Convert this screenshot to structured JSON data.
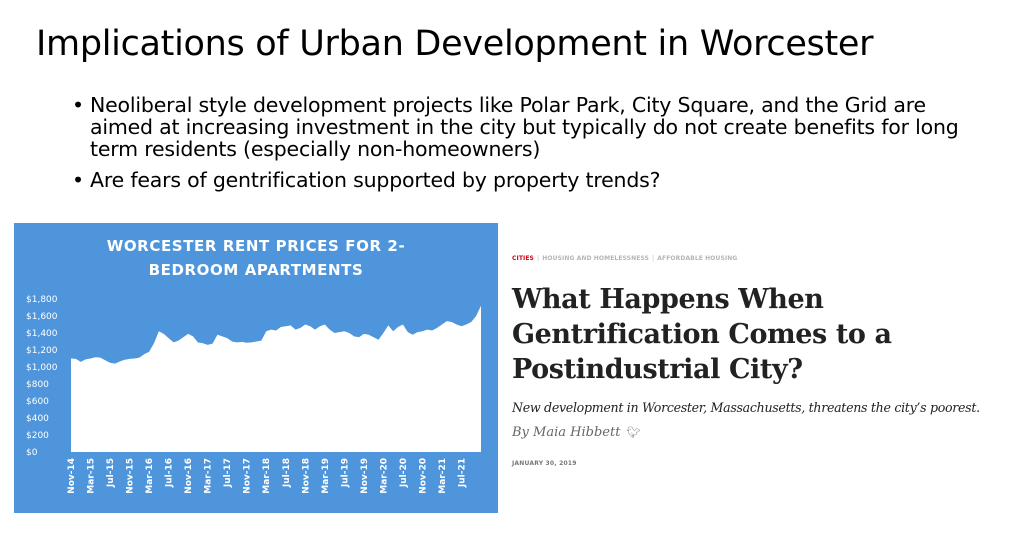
{
  "slide": {
    "title": "Implications of Urban Development in Worcester",
    "bullets": [
      "Neoliberal style development projects like Polar Park, City Square, and the Grid are aimed at increasing investment in the city but typically do not create benefits for long term residents (especially non-homeowners)",
      "Are fears of gentrification supported by property trends?"
    ]
  },
  "chart_data": {
    "type": "area",
    "title_lines": [
      "WORCESTER RENT PRICES FOR 2-",
      "BEDROOM APARTMENTS"
    ],
    "background_color": "#4f95dc",
    "fill_color": "#ffffff",
    "x_tick_labels": [
      "Nov-14",
      "Mar-15",
      "Jul-15",
      "Nov-15",
      "Mar-16",
      "Jul-16",
      "Nov-16",
      "Mar-17",
      "Jul-17",
      "Nov-17",
      "Mar-18",
      "Jul-18",
      "Nov-18",
      "Mar-19",
      "Jul-19",
      "Nov-19",
      "Mar-20",
      "Jul-20",
      "Nov-20",
      "Mar-21",
      "Jul-21"
    ],
    "y_tick_labels": [
      "$0",
      "$200",
      "$400",
      "$600",
      "$800",
      "$1,000",
      "$1,200",
      "$1,400",
      "$1,600",
      "$1,800"
    ],
    "ylim": [
      0,
      1800
    ],
    "grid": false,
    "values": [
      1100,
      1095,
      1060,
      1090,
      1100,
      1115,
      1110,
      1080,
      1050,
      1040,
      1065,
      1085,
      1095,
      1100,
      1110,
      1150,
      1180,
      1280,
      1420,
      1390,
      1340,
      1290,
      1310,
      1350,
      1390,
      1360,
      1290,
      1280,
      1260,
      1275,
      1380,
      1360,
      1340,
      1300,
      1290,
      1295,
      1285,
      1290,
      1300,
      1310,
      1420,
      1440,
      1430,
      1470,
      1480,
      1490,
      1440,
      1460,
      1500,
      1480,
      1440,
      1480,
      1500,
      1440,
      1400,
      1410,
      1420,
      1400,
      1360,
      1350,
      1390,
      1380,
      1350,
      1320,
      1400,
      1490,
      1420,
      1470,
      1500,
      1410,
      1380,
      1410,
      1420,
      1440,
      1430,
      1460,
      1500,
      1540,
      1530,
      1500,
      1480,
      1500,
      1530,
      1600,
      1720
    ]
  },
  "article": {
    "tags": [
      "CITIES",
      "HOUSING AND HOMELESSNESS",
      "AFFORDABLE HOUSING"
    ],
    "headline_lines": [
      "What Happens When",
      "Gentrification Comes to a",
      "Postindustrial City?"
    ],
    "dek": "New development in Worcester, Massachusetts, threatens the city’s poorest.",
    "byline": "By Maia Hibbett",
    "twitter_icon": "twitter-bird-icon",
    "date": "JANUARY 30, 2019"
  }
}
